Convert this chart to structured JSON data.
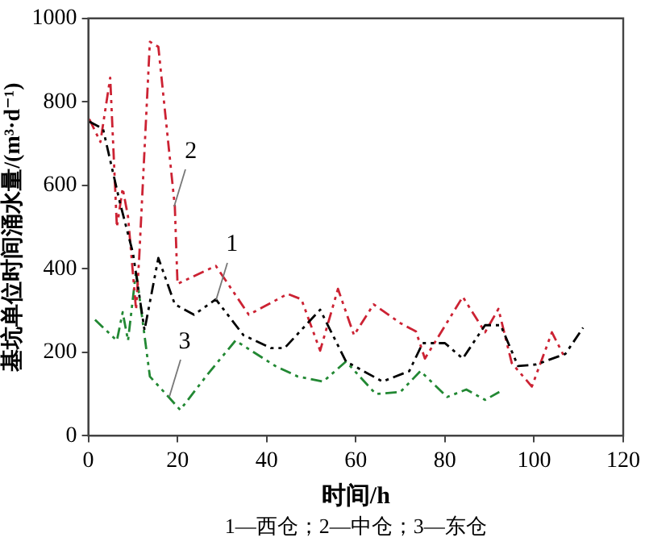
{
  "chart_data": {
    "type": "line",
    "xlabel": "时间/h",
    "ylabel": "基坑单位时间涌水量/(m³·d⁻¹)",
    "xlim": [
      0,
      120
    ],
    "xticks": [
      0,
      20,
      40,
      60,
      80,
      100,
      120
    ],
    "ylim": [
      0,
      1000
    ],
    "yticks": [
      0,
      200,
      400,
      600,
      800,
      1000
    ],
    "grid": false,
    "legend": false,
    "marker": "none",
    "line_style": "dashed",
    "series": [
      {
        "color": "#000000",
        "x": [
          0.2,
          3.3,
          7,
          10,
          12.6,
          15.7,
          19.4,
          23.7,
          28.6,
          34.8,
          41,
          44,
          52,
          57.8,
          66,
          72,
          75,
          80,
          84,
          89,
          92.5,
          96.4,
          100.5,
          107,
          111
        ],
        "values": [
          753,
          735,
          562,
          438,
          253,
          426,
          315,
          290,
          327,
          241,
          210,
          210,
          302,
          178,
          130,
          155,
          222,
          222,
          185,
          265,
          265,
          167,
          171,
          196,
          259
        ]
      },
      {
        "color": "#cc2233",
        "x": [
          0.2,
          2.7,
          4.9,
          6.4,
          7.7,
          8.9,
          10.7,
          11.4,
          13.8,
          15.7,
          19.4,
          20,
          28.6,
          36,
          44.7,
          47.8,
          52,
          56,
          59.6,
          64,
          70,
          73.5,
          75.5,
          84,
          89,
          92,
          95,
          99.5,
          104,
          107
        ],
        "values": [
          759,
          704,
          858,
          500,
          593,
          525,
          302,
          426,
          944,
          932,
          549,
          364,
          407,
          290,
          340,
          327,
          204,
          352,
          241,
          315,
          270,
          250,
          185,
          333,
          248,
          304,
          174,
          118,
          248,
          185
        ]
      },
      {
        "color": "#228833",
        "x": [
          1.5,
          6.4,
          7.7,
          8.9,
          10.7,
          13.8,
          18,
          20.6,
          26.8,
          33,
          42,
          47,
          52.7,
          57.8,
          64.5,
          70,
          74.5,
          80.5,
          84.8,
          89,
          92.2
        ],
        "values": [
          278,
          228,
          296,
          228,
          395,
          142,
          93,
          62,
          148,
          228,
          167,
          142,
          130,
          178,
          100,
          105,
          155,
          93,
          111,
          86,
          105
        ]
      }
    ],
    "annotations": [
      {
        "text": "1",
        "x": 28.6,
        "y": 327
      },
      {
        "text": "2",
        "x": 19.4,
        "y": 549
      },
      {
        "text": "3",
        "x": 18,
        "y": 93
      },
      "1—西仓；2—中仓；3—东仓"
    ]
  }
}
